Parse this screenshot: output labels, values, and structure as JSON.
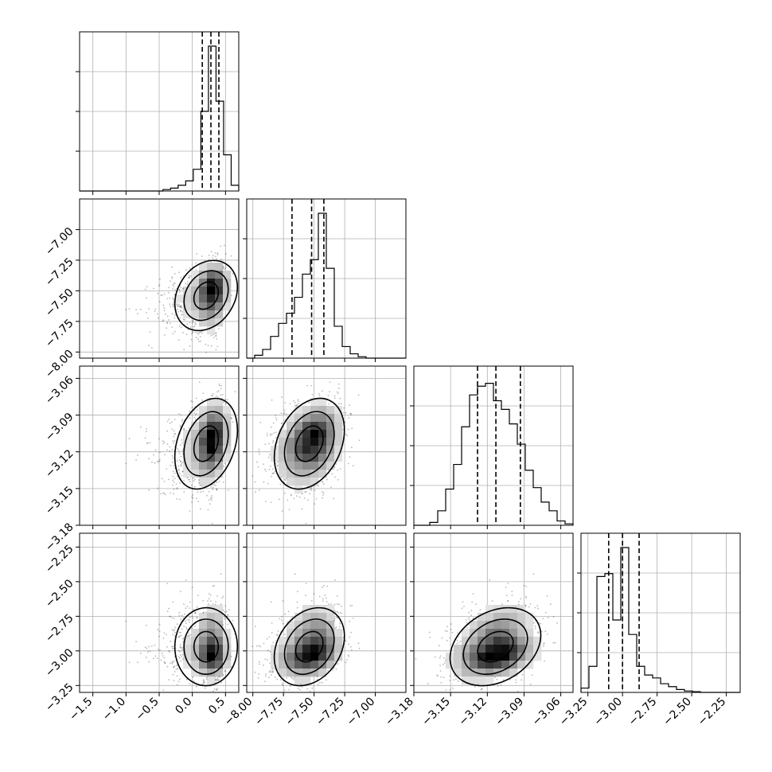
{
  "chart_data": {
    "type": "scatter",
    "parameters": [
      {
        "range": [
          -1.7,
          0.7
        ],
        "ticks": [
          "−1.5",
          "−1.0",
          "−0.5",
          "0.0",
          "0.5"
        ],
        "tick_values": [
          -1.5,
          -1.0,
          -0.5,
          0.0,
          0.5
        ],
        "center": 0.28,
        "sd": 0.16,
        "skew": "left",
        "quantiles": [
          0.15,
          0.28,
          0.4
        ],
        "hist_density": [
          0,
          0,
          0,
          0,
          0,
          0,
          0,
          0,
          0,
          0,
          0,
          0.01,
          0.02,
          0.04,
          0.07,
          0.15,
          0.55,
          1.0,
          0.62,
          0.25,
          0.04
        ]
      },
      {
        "range": [
          -8.05,
          -6.75
        ],
        "ticks": [
          "−8.00",
          "−7.75",
          "−7.50",
          "−7.25",
          "−7.00"
        ],
        "tick_values": [
          -8.0,
          -7.75,
          -7.5,
          -7.25,
          -7.0
        ],
        "center": -7.52,
        "sd": 0.13,
        "skew": "left",
        "quantiles": [
          -7.68,
          -7.52,
          -7.42
        ],
        "hist_density": [
          0,
          0.02,
          0.06,
          0.15,
          0.24,
          0.31,
          0.42,
          0.58,
          0.68,
          1.0,
          0.62,
          0.22,
          0.08,
          0.03,
          0.01,
          0,
          0,
          0,
          0,
          0
        ]
      },
      {
        "range": [
          -3.18,
          -3.05
        ],
        "ticks": [
          "−3.18",
          "−3.15",
          "−3.12",
          "−3.09",
          "−3.06"
        ],
        "tick_values": [
          -3.18,
          -3.15,
          -3.12,
          -3.09,
          -3.06
        ],
        "center": -3.113,
        "sd": 0.018,
        "skew": "none",
        "quantiles": [
          -3.128,
          -3.113,
          -3.093
        ],
        "hist_density": [
          0,
          0,
          0.02,
          0.1,
          0.25,
          0.42,
          0.68,
          0.9,
          0.96,
          0.98,
          0.86,
          0.8,
          0.7,
          0.56,
          0.38,
          0.26,
          0.16,
          0.1,
          0.03,
          0.01
        ]
      },
      {
        "range": [
          -3.3,
          -2.15
        ],
        "ticks": [
          "−3.25",
          "−3.00",
          "−2.75",
          "−2.50",
          "−2.25"
        ],
        "tick_values": [
          -3.25,
          -3.0,
          -2.75,
          -2.5,
          -2.25
        ],
        "center": -3.0,
        "sd": 0.1,
        "skew": "right",
        "quantiles": [
          -3.1,
          -3.0,
          -2.88
        ],
        "hist_density": [
          0.03,
          0.18,
          0.8,
          0.82,
          0.5,
          1.0,
          0.4,
          0.18,
          0.12,
          0.1,
          0.06,
          0.04,
          0.02,
          0.01,
          0.005,
          0,
          0,
          0,
          0,
          0
        ]
      }
    ],
    "grid": true,
    "legend": "none"
  }
}
